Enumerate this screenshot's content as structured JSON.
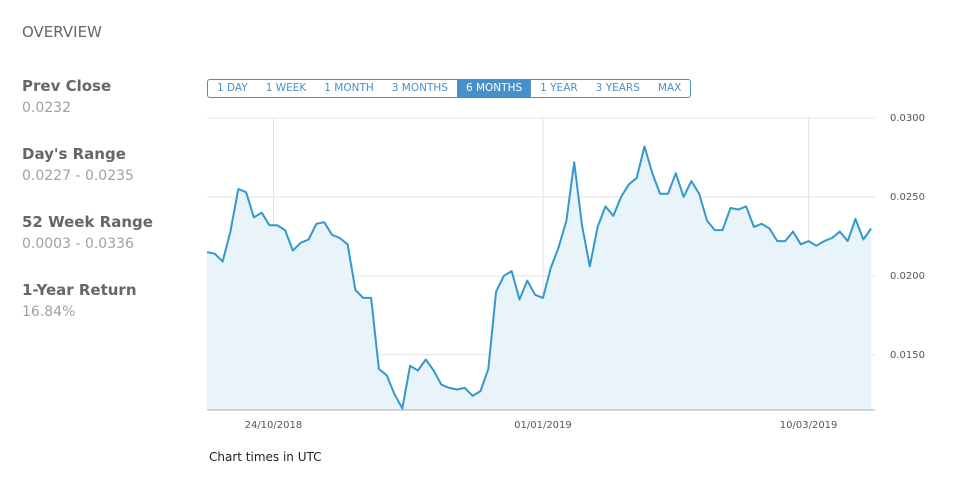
{
  "header": {
    "title": "OVERVIEW"
  },
  "stats": [
    {
      "label": "Prev Close",
      "value": "0.0232"
    },
    {
      "label": "Day's Range",
      "value": "0.0227 - 0.0235"
    },
    {
      "label": "52 Week Range",
      "value": "0.0003 - 0.0336"
    },
    {
      "label": "1-Year Return",
      "value": "16.84%"
    }
  ],
  "range_buttons": {
    "options": [
      "1 DAY",
      "1 WEEK",
      "1 MONTH",
      "3 MONTHS",
      "6 MONTHS",
      "1 YEAR",
      "3 YEARS",
      "MAX"
    ],
    "active": 4
  },
  "footnote": "Chart times in UTC",
  "chart_data": {
    "type": "area",
    "color": "#3399cc",
    "fill_color": "#e8f3fa",
    "grid": true,
    "x": [
      "07/10/2018",
      "09/10/2018",
      "11/10/2018",
      "13/10/2018",
      "15/10/2018",
      "17/10/2018",
      "19/10/2018",
      "21/10/2018",
      "23/10/2018",
      "25/10/2018",
      "27/10/2018",
      "29/10/2018",
      "31/10/2018",
      "02/11/2018",
      "04/11/2018",
      "06/11/2018",
      "08/11/2018",
      "10/11/2018",
      "12/11/2018",
      "14/11/2018",
      "16/11/2018",
      "18/11/2018",
      "20/11/2018",
      "22/11/2018",
      "24/11/2018",
      "26/11/2018",
      "28/11/2018",
      "30/11/2018",
      "02/12/2018",
      "04/12/2018",
      "06/12/2018",
      "08/12/2018",
      "10/12/2018",
      "12/12/2018",
      "14/12/2018",
      "16/12/2018",
      "18/12/2018",
      "20/12/2018",
      "22/12/2018",
      "24/12/2018",
      "26/12/2018",
      "28/12/2018",
      "30/12/2018",
      "01/01/2019",
      "03/01/2019",
      "05/01/2019",
      "07/01/2019",
      "09/01/2019",
      "11/01/2019",
      "13/01/2019",
      "15/01/2019",
      "17/01/2019",
      "19/01/2019",
      "21/01/2019",
      "23/01/2019",
      "25/01/2019",
      "27/01/2019",
      "29/01/2019",
      "31/01/2019",
      "02/02/2019",
      "04/02/2019",
      "06/02/2019",
      "08/02/2019",
      "10/02/2019",
      "12/02/2019",
      "14/02/2019",
      "16/02/2019",
      "18/02/2019",
      "20/02/2019",
      "22/02/2019",
      "24/02/2019",
      "26/02/2019",
      "28/02/2019",
      "02/03/2019",
      "04/03/2019",
      "06/03/2019",
      "08/03/2019",
      "10/03/2019",
      "12/03/2019",
      "14/03/2019",
      "16/03/2019",
      "18/03/2019",
      "20/03/2019",
      "22/03/2019",
      "24/03/2019",
      "26/03/2019"
    ],
    "values": [
      0.0215,
      0.0214,
      0.0209,
      0.0228,
      0.0255,
      0.0253,
      0.0237,
      0.024,
      0.0232,
      0.0232,
      0.0229,
      0.0216,
      0.0221,
      0.0223,
      0.0233,
      0.0234,
      0.0226,
      0.0224,
      0.022,
      0.0191,
      0.0186,
      0.0186,
      0.0141,
      0.0137,
      0.0125,
      0.0116,
      0.0143,
      0.014,
      0.0147,
      0.014,
      0.0131,
      0.0129,
      0.0128,
      0.0129,
      0.0124,
      0.0127,
      0.0141,
      0.019,
      0.02,
      0.0203,
      0.0185,
      0.0197,
      0.0188,
      0.0186,
      0.0205,
      0.0218,
      0.0235,
      0.0272,
      0.0232,
      0.0206,
      0.0231,
      0.0244,
      0.0238,
      0.025,
      0.0258,
      0.0262,
      0.0282,
      0.0265,
      0.0252,
      0.0252,
      0.0265,
      0.025,
      0.026,
      0.0252,
      0.0235,
      0.0229,
      0.0229,
      0.0243,
      0.0242,
      0.0244,
      0.0231,
      0.0233,
      0.023,
      0.0222,
      0.0222,
      0.0228,
      0.022,
      0.0222,
      0.0219,
      0.0222,
      0.0224,
      0.0228,
      0.0222,
      0.0236,
      0.0223,
      0.023
    ],
    "xlim": [
      "07/10/2018",
      "27/03/2019"
    ],
    "xticks": [
      "24/10/2018",
      "01/01/2019",
      "10/03/2019"
    ],
    "ylim": [
      0.0115,
      0.03
    ],
    "yticks": [
      {
        "value": 0.015,
        "label": "0.0150"
      },
      {
        "value": 0.02,
        "label": "0.0200"
      },
      {
        "value": 0.025,
        "label": "0.0250"
      },
      {
        "value": 0.03,
        "label": "0.0300"
      }
    ]
  }
}
